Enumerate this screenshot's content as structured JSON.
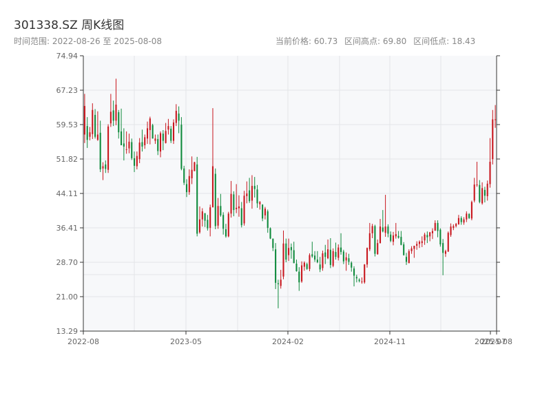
{
  "header": {
    "title": "301338.SZ 周K线图",
    "date_range": "时间范围: 2022-08-26 至 2025-08-08",
    "current_price": "当前价格: 60.73",
    "range_high": "区间高点: 69.80",
    "range_low": "区间低点: 18.43"
  },
  "colors": {
    "up": "#c8161d",
    "down": "#0f8a3c",
    "plot_bg": "#f7f8fa",
    "grid": "#e3e5e8",
    "axis": "#333333"
  },
  "chart_data": {
    "type": "candlestick",
    "ylim": [
      13.29,
      74.94
    ],
    "y_ticks": [
      "74.94",
      "67.23",
      "59.53",
      "51.82",
      "44.11",
      "36.41",
      "28.70",
      "21.00",
      "13.29"
    ],
    "x_ticks": [
      "2022-08",
      "2023-05",
      "2024-02",
      "2024-11",
      "2025-07",
      "2025-08"
    ],
    "ohlc": [
      [
        57.3,
        66.4,
        55.4,
        63.7
      ],
      [
        59.2,
        61.2,
        54.3,
        56.1
      ],
      [
        56.8,
        59.0,
        56.0,
        57.8
      ],
      [
        57.4,
        64.3,
        56.3,
        62.8
      ],
      [
        61.7,
        63.0,
        56.4,
        56.8
      ],
      [
        56.1,
        62.5,
        55.9,
        57.3
      ],
      [
        57.7,
        60.4,
        48.9,
        49.5
      ],
      [
        49.7,
        51.1,
        47.1,
        50.2
      ],
      [
        50.6,
        51.5,
        48.7,
        49.6
      ],
      [
        49.4,
        59.6,
        48.7,
        59.1
      ],
      [
        59.8,
        66.4,
        59.0,
        62.4
      ],
      [
        62.7,
        64.9,
        59.2,
        60.4
      ],
      [
        60.4,
        69.8,
        59.4,
        64.0
      ],
      [
        62.3,
        62.8,
        56.4,
        57.8
      ],
      [
        58.0,
        63.1,
        54.9,
        54.9
      ],
      [
        55.3,
        58.7,
        51.5,
        54.6
      ],
      [
        53.9,
        58.0,
        53.0,
        54.0
      ],
      [
        54.2,
        57.5,
        53.1,
        55.7
      ],
      [
        55.6,
        56.4,
        51.6,
        52.0
      ],
      [
        52.0,
        53.5,
        48.9,
        50.3
      ],
      [
        50.2,
        53.5,
        49.5,
        52.5
      ],
      [
        51.8,
        56.5,
        50.9,
        55.5
      ],
      [
        55.6,
        58.4,
        53.5,
        54.6
      ],
      [
        54.9,
        57.3,
        54.1,
        56.7
      ],
      [
        56.4,
        60.2,
        55.2,
        58.7
      ],
      [
        58.3,
        61.3,
        55.1,
        60.9
      ],
      [
        59.4,
        59.7,
        56.4,
        56.4
      ],
      [
        55.9,
        57.3,
        55.2,
        56.4
      ],
      [
        56.3,
        57.3,
        52.7,
        53.6
      ],
      [
        53.5,
        58.0,
        52.2,
        57.6
      ],
      [
        57.5,
        58.3,
        53.8,
        55.9
      ],
      [
        55.4,
        59.9,
        55.3,
        58.1
      ],
      [
        58.4,
        60.8,
        57.3,
        59.2
      ],
      [
        58.6,
        59.2,
        55.4,
        55.9
      ],
      [
        55.9,
        60.7,
        55.2,
        60.0
      ],
      [
        59.9,
        64.1,
        59.2,
        62.6
      ],
      [
        62.0,
        63.6,
        57.6,
        60.4
      ],
      [
        59.5,
        61.2,
        49.3,
        49.6
      ],
      [
        49.7,
        50.3,
        46.0,
        46.5
      ],
      [
        46.2,
        47.3,
        43.3,
        44.4
      ],
      [
        44.4,
        49.5,
        43.8,
        48.0
      ],
      [
        47.5,
        52.4,
        46.2,
        49.4
      ],
      [
        49.1,
        51.2,
        49.1,
        51.1
      ],
      [
        50.6,
        52.3,
        34.5,
        35.1
      ],
      [
        35.4,
        41.2,
        35.1,
        38.3
      ],
      [
        38.3,
        40.8,
        36.7,
        40.1
      ],
      [
        39.7,
        39.7,
        36.6,
        38.0
      ],
      [
        38.2,
        39.3,
        35.8,
        36.3
      ],
      [
        36.4,
        41.6,
        34.5,
        41.0
      ],
      [
        41.0,
        63.2,
        41.0,
        50.2
      ],
      [
        48.5,
        49.7,
        36.1,
        36.8
      ],
      [
        36.9,
        43.1,
        36.2,
        41.3
      ],
      [
        41.3,
        44.0,
        38.9,
        39.2
      ],
      [
        39.3,
        39.9,
        34.9,
        36.2
      ],
      [
        36.1,
        37.3,
        34.2,
        34.5
      ],
      [
        34.5,
        40.0,
        34.3,
        39.6
      ],
      [
        39.6,
        46.9,
        38.7,
        44.0
      ],
      [
        43.9,
        44.6,
        39.0,
        40.4
      ],
      [
        40.6,
        46.2,
        39.7,
        40.9
      ],
      [
        40.8,
        43.7,
        38.9,
        41.2
      ],
      [
        40.8,
        42.2,
        36.5,
        37.0
      ],
      [
        37.4,
        44.7,
        36.9,
        43.6
      ],
      [
        43.5,
        46.8,
        41.9,
        44.1
      ],
      [
        44.8,
        47.6,
        42.0,
        42.4
      ],
      [
        42.5,
        48.2,
        40.7,
        45.8
      ],
      [
        45.8,
        47.8,
        43.2,
        45.1
      ],
      [
        45.0,
        46.0,
        40.9,
        41.9
      ],
      [
        41.7,
        42.4,
        40.5,
        42.2
      ],
      [
        41.6,
        41.7,
        37.9,
        38.5
      ],
      [
        39.2,
        41.1,
        38.3,
        40.7
      ],
      [
        40.1,
        40.5,
        35.3,
        36.4
      ],
      [
        36.3,
        36.5,
        33.9,
        34.0
      ],
      [
        34.0,
        34.0,
        31.2,
        31.9
      ],
      [
        31.6,
        33.0,
        22.7,
        24.1
      ],
      [
        24.0,
        24.8,
        18.4,
        23.8
      ],
      [
        23.4,
        27.0,
        22.8,
        24.8
      ],
      [
        25.5,
        35.8,
        24.9,
        32.9
      ],
      [
        32.9,
        34.0,
        28.7,
        29.3
      ],
      [
        30.3,
        34.0,
        29.0,
        31.9
      ],
      [
        32.1,
        32.9,
        29.5,
        31.4
      ],
      [
        31.4,
        33.3,
        28.5,
        28.5
      ],
      [
        28.4,
        29.3,
        26.6,
        26.7
      ],
      [
        26.6,
        27.6,
        22.3,
        24.2
      ],
      [
        24.4,
        28.9,
        24.1,
        28.0
      ],
      [
        27.7,
        28.9,
        26.8,
        28.6
      ],
      [
        28.3,
        28.6,
        27.0,
        27.2
      ],
      [
        27.2,
        30.7,
        26.7,
        30.3
      ],
      [
        30.5,
        33.3,
        29.7,
        30.0
      ],
      [
        30.2,
        31.2,
        28.8,
        29.3
      ],
      [
        29.3,
        31.2,
        28.5,
        28.7
      ],
      [
        28.2,
        29.9,
        26.5,
        27.1
      ],
      [
        27.4,
        31.3,
        26.8,
        30.7
      ],
      [
        30.9,
        32.6,
        28.3,
        29.9
      ],
      [
        29.6,
        33.8,
        29.4,
        31.6
      ],
      [
        31.5,
        34.1,
        27.4,
        28.1
      ],
      [
        27.9,
        31.8,
        27.6,
        31.2
      ],
      [
        31.0,
        33.1,
        29.3,
        29.9
      ],
      [
        29.7,
        32.7,
        29.1,
        32.0
      ],
      [
        32.0,
        35.2,
        30.4,
        31.0
      ],
      [
        31.1,
        31.5,
        28.3,
        28.9
      ],
      [
        29.1,
        30.9,
        26.8,
        29.8
      ],
      [
        29.6,
        30.6,
        28.1,
        28.8
      ],
      [
        28.6,
        28.9,
        26.6,
        27.5
      ],
      [
        27.3,
        27.8,
        23.3,
        25.7
      ],
      [
        25.4,
        25.9,
        24.2,
        25.1
      ],
      [
        24.8,
        25.1,
        24.2,
        24.5
      ],
      [
        24.3,
        25.3,
        23.9,
        24.4
      ],
      [
        24.2,
        28.3,
        23.9,
        28.2
      ],
      [
        28.2,
        32.0,
        27.5,
        31.9
      ],
      [
        31.6,
        37.5,
        31.2,
        35.2
      ],
      [
        35.2,
        37.3,
        34.1,
        36.8
      ],
      [
        36.8,
        37.1,
        30.0,
        30.6
      ],
      [
        30.5,
        33.8,
        30.4,
        33.0
      ],
      [
        33.0,
        38.4,
        32.9,
        36.7
      ],
      [
        36.5,
        40.4,
        35.4,
        35.6
      ],
      [
        35.3,
        43.8,
        34.4,
        36.7
      ],
      [
        36.7,
        37.2,
        34.3,
        35.1
      ],
      [
        34.9,
        35.6,
        33.2,
        33.5
      ],
      [
        33.3,
        35.5,
        32.5,
        34.7
      ],
      [
        34.5,
        37.5,
        34.0,
        35.0
      ],
      [
        34.6,
        35.7,
        34.0,
        34.2
      ],
      [
        34.4,
        35.7,
        32.5,
        32.6
      ],
      [
        32.7,
        33.2,
        30.2,
        30.3
      ],
      [
        29.9,
        30.8,
        28.1,
        28.8
      ],
      [
        28.5,
        31.6,
        28.5,
        31.2
      ],
      [
        31.2,
        32.3,
        30.6,
        31.8
      ],
      [
        31.7,
        32.4,
        29.7,
        32.4
      ],
      [
        32.4,
        33.4,
        31.5,
        32.8
      ],
      [
        32.8,
        33.6,
        31.9,
        33.3
      ],
      [
        33.0,
        34.5,
        32.1,
        33.4
      ],
      [
        33.6,
        35.3,
        32.6,
        34.9
      ],
      [
        34.8,
        35.6,
        33.0,
        34.3
      ],
      [
        34.5,
        35.5,
        33.4,
        35.4
      ],
      [
        35.2,
        36.3,
        33.9,
        35.7
      ],
      [
        35.8,
        38.1,
        35.7,
        37.5
      ],
      [
        37.5,
        38.1,
        34.3,
        35.7
      ],
      [
        36.0,
        36.3,
        32.2,
        32.7
      ],
      [
        33.0,
        33.9,
        25.8,
        30.8
      ],
      [
        30.6,
        31.5,
        29.9,
        31.2
      ],
      [
        31.1,
        35.6,
        31.0,
        35.3
      ],
      [
        34.8,
        37.4,
        34.4,
        36.7
      ],
      [
        36.4,
        37.2,
        35.9,
        36.8
      ],
      [
        36.8,
        37.5,
        36.5,
        37.3
      ],
      [
        37.2,
        39.3,
        37.1,
        38.6
      ],
      [
        38.6,
        39.0,
        37.1,
        37.7
      ],
      [
        37.6,
        38.8,
        37.1,
        38.3
      ],
      [
        38.3,
        40.1,
        37.7,
        39.6
      ],
      [
        39.5,
        39.7,
        38.4,
        38.6
      ],
      [
        38.5,
        42.5,
        38.1,
        42.2
      ],
      [
        42.5,
        47.6,
        42.1,
        46.1
      ],
      [
        46.1,
        51.2,
        45.6,
        46.1
      ],
      [
        46.0,
        47.1,
        41.9,
        42.2
      ],
      [
        41.9,
        46.6,
        41.6,
        45.3
      ],
      [
        44.9,
        45.6,
        42.1,
        43.6
      ],
      [
        43.5,
        47.0,
        42.5,
        46.3
      ],
      [
        46.2,
        56.5,
        45.4,
        51.2
      ],
      [
        51.8,
        62.8,
        50.6,
        60.7
      ],
      [
        60.7,
        63.9,
        58.8,
        60.7
      ]
    ]
  }
}
